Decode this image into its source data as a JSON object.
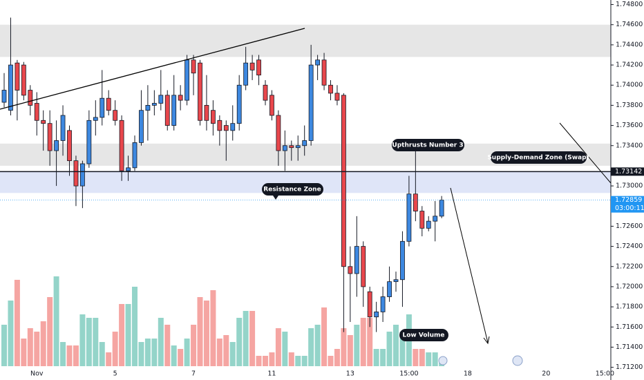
{
  "chart_data": {
    "type": "candlestick",
    "categories": [
      null,
      null,
      null,
      null,
      null,
      "Nov",
      null,
      null,
      null,
      null,
      null,
      null,
      null,
      null,
      null,
      null,
      null,
      "5",
      null,
      null,
      null,
      null,
      null,
      null,
      null,
      null,
      null,
      null,
      null,
      "7",
      null,
      null,
      null,
      null,
      null,
      null,
      null,
      null,
      null,
      null,
      null,
      "11",
      null,
      null,
      null,
      null,
      null,
      null,
      null,
      null,
      null,
      null,
      null,
      "13",
      null,
      null,
      null,
      null,
      null,
      null,
      null,
      null,
      "15:00",
      null,
      null,
      null,
      null,
      null,
      null,
      null,
      null,
      "18",
      null,
      null,
      null,
      null,
      null,
      null,
      null,
      null,
      null,
      null,
      null,
      "20",
      null,
      null,
      null,
      null,
      null,
      null,
      null,
      null,
      "15:00"
    ],
    "open": [
      1.7383,
      1.7375,
      1.7422,
      1.742,
      1.7395,
      1.7382,
      1.7365,
      1.7362,
      1.7335,
      1.7345,
      1.7355,
      1.7325,
      1.73,
      1.7322,
      1.7365,
      1.7368,
      1.7387,
      1.7375,
      1.7365,
      1.7315,
      1.7318,
      1.7343,
      1.7375,
      1.738,
      1.7382,
      1.739,
      1.736,
      1.739,
      1.7385,
      1.7425,
      1.7422,
      1.738,
      1.7375,
      1.7365,
      1.736,
      1.7355,
      1.7362,
      1.74,
      1.7422,
      1.7425,
      1.74,
      1.739,
      1.737,
      1.7335,
      1.734,
      1.7338,
      1.734,
      1.7345,
      1.742,
      1.7425,
      1.74,
      1.7392,
      1.739,
      1.722,
      1.7213,
      1.724,
      1.7195,
      1.717,
      1.7175,
      1.719,
      1.7205,
      1.7207,
      1.7245,
      1.7292,
      1.7275,
      1.7258,
      1.7265,
      1.727,
      null,
      null,
      null,
      null,
      null,
      null,
      null,
      null,
      null,
      null,
      null,
      null,
      null,
      null,
      null,
      null,
      null,
      null,
      null,
      null,
      null,
      null,
      null,
      null,
      null
    ],
    "high": [
      1.7412,
      1.7467,
      1.7425,
      1.7423,
      1.74,
      1.7393,
      1.7375,
      1.7375,
      1.7365,
      1.738,
      1.736,
      1.733,
      1.7325,
      1.7375,
      1.7385,
      1.7415,
      1.7395,
      1.7385,
      1.737,
      1.733,
      1.735,
      1.7395,
      1.74,
      1.7395,
      1.7415,
      1.7395,
      1.741,
      1.74,
      1.743,
      1.743,
      1.7425,
      1.741,
      1.7385,
      1.737,
      1.7365,
      1.738,
      1.741,
      1.7438,
      1.743,
      1.743,
      1.7405,
      1.7395,
      1.7375,
      1.7355,
      1.7345,
      1.735,
      1.736,
      1.744,
      1.743,
      1.7432,
      1.7405,
      1.74,
      1.7392,
      1.724,
      1.727,
      1.7245,
      1.72,
      1.7185,
      1.72,
      1.722,
      1.7215,
      1.7255,
      1.731,
      1.734,
      1.728,
      1.727,
      1.7285,
      1.729,
      null,
      null,
      null,
      null,
      null,
      null,
      null,
      null,
      null,
      null,
      null,
      null,
      null,
      null,
      null,
      null,
      null,
      null,
      null,
      null,
      null,
      null,
      null,
      null,
      null
    ],
    "low": [
      1.7378,
      1.737,
      1.7365,
      1.7385,
      1.737,
      1.735,
      1.7335,
      1.732,
      1.73,
      1.733,
      1.731,
      1.728,
      1.7278,
      1.7318,
      1.735,
      1.736,
      1.737,
      1.736,
      1.7305,
      1.7305,
      1.7315,
      1.734,
      1.7345,
      1.737,
      1.7375,
      1.7355,
      1.7355,
      1.7375,
      1.738,
      1.739,
      1.736,
      1.7355,
      1.735,
      1.734,
      1.7325,
      1.7345,
      1.7355,
      1.7395,
      1.7405,
      1.74,
      1.738,
      1.7365,
      1.732,
      1.7315,
      1.7325,
      1.7325,
      1.733,
      1.734,
      1.7405,
      1.7395,
      1.7385,
      1.738,
      1.7155,
      1.7165,
      1.719,
      1.718,
      1.716,
      1.7155,
      1.7165,
      1.7185,
      1.7195,
      1.718,
      1.724,
      1.7265,
      1.725,
      1.7255,
      1.7245,
      1.7268,
      null,
      null,
      null,
      null,
      null,
      null,
      null,
      null,
      null,
      null,
      null,
      null,
      null,
      null,
      null,
      null,
      null,
      null,
      null,
      null,
      null,
      null,
      null,
      null,
      null
    ],
    "close": [
      1.7395,
      1.742,
      1.7395,
      1.739,
      1.738,
      1.7365,
      1.7362,
      1.7335,
      1.7345,
      1.737,
      1.7325,
      1.73,
      1.7322,
      1.7365,
      1.7368,
      1.7387,
      1.7375,
      1.7365,
      1.7315,
      1.7318,
      1.7343,
      1.7375,
      1.738,
      1.7382,
      1.739,
      1.736,
      1.739,
      1.7385,
      1.7425,
      1.7412,
      1.7365,
      1.7365,
      1.7362,
      1.7355,
      1.7355,
      1.7362,
      1.74,
      1.7422,
      1.7415,
      1.741,
      1.7385,
      1.737,
      1.7335,
      1.734,
      1.7338,
      1.734,
      1.7345,
      1.742,
      1.7425,
      1.74,
      1.7392,
      1.7385,
      1.722,
      1.7213,
      1.724,
      1.72,
      1.717,
      1.7175,
      1.719,
      1.7205,
      1.7207,
      1.7245,
      1.7292,
      1.7275,
      1.7258,
      1.7265,
      1.727,
      1.72859,
      null,
      null,
      null,
      null,
      null,
      null,
      null,
      null,
      null,
      null,
      null,
      null,
      null,
      null,
      null,
      null,
      null,
      null,
      null,
      null,
      null,
      null,
      null,
      null,
      null
    ],
    "volume": [
      60,
      95,
      125,
      40,
      55,
      50,
      65,
      100,
      130,
      35,
      30,
      30,
      75,
      70,
      70,
      35,
      20,
      50,
      90,
      90,
      115,
      35,
      40,
      40,
      70,
      60,
      30,
      25,
      40,
      60,
      100,
      95,
      110,
      40,
      45,
      35,
      70,
      80,
      80,
      15,
      15,
      20,
      55,
      50,
      20,
      15,
      15,
      55,
      60,
      85,
      15,
      25,
      55,
      45,
      60,
      70,
      70,
      25,
      25,
      50,
      60,
      50,
      75,
      25,
      25,
      20,
      20,
      5,
      null,
      null,
      null,
      null,
      null,
      null,
      null,
      null,
      null,
      null,
      null,
      null,
      null,
      null,
      null,
      null,
      null,
      null,
      null,
      null,
      null,
      null,
      null,
      null,
      null
    ],
    "vlim": [
      0,
      250
    ],
    "up_color": "#3d88e0",
    "down_color": "#e8474c",
    "volume_up_color": "#94d4c9",
    "volume_down_color": "#f5a5a2",
    "ylim": [
      1.71074,
      1.74845
    ],
    "yticks": [
      {
        "value": 1.712,
        "label": "1.71200"
      },
      {
        "value": 1.714,
        "label": "1.71400"
      },
      {
        "value": 1.716,
        "label": "1.71600"
      },
      {
        "value": 1.718,
        "label": "1.71800"
      },
      {
        "value": 1.72,
        "label": "1.72000"
      },
      {
        "value": 1.722,
        "label": "1.72200"
      },
      {
        "value": 1.724,
        "label": "1.72400"
      },
      {
        "value": 1.726,
        "label": "1.72600"
      },
      {
        "value": 1.73,
        "label": "1.73000"
      },
      {
        "value": 1.734,
        "label": "1.73400"
      },
      {
        "value": 1.736,
        "label": "1.73600"
      },
      {
        "value": 1.738,
        "label": "1.73800"
      },
      {
        "value": 1.74,
        "label": "1.74000"
      },
      {
        "value": 1.742,
        "label": "1.74200"
      },
      {
        "value": 1.744,
        "label": "1.74400"
      },
      {
        "value": 1.746,
        "label": "1.74600"
      },
      {
        "value": 1.748,
        "label": "1.74800"
      }
    ],
    "grid": false,
    "zones": [
      {
        "from": 1.7428,
        "to": 1.746,
        "color": "#e6e6e6"
      },
      {
        "from": 1.732,
        "to": 1.7342,
        "color": "#e6e6e6"
      },
      {
        "from": 1.7293,
        "to": 1.73145,
        "color": "#dfe5f8"
      }
    ],
    "price_tags": [
      {
        "value": 1.73142,
        "color": "#131722"
      },
      {
        "value": 1.72859,
        "color": "#2196f3"
      }
    ],
    "countdown": "03:00:11",
    "annotations": [
      "Upthrusts Number 3",
      "Supply-Demand Zone (Swap)",
      "Resistance Zone",
      "Low Volume"
    ]
  }
}
